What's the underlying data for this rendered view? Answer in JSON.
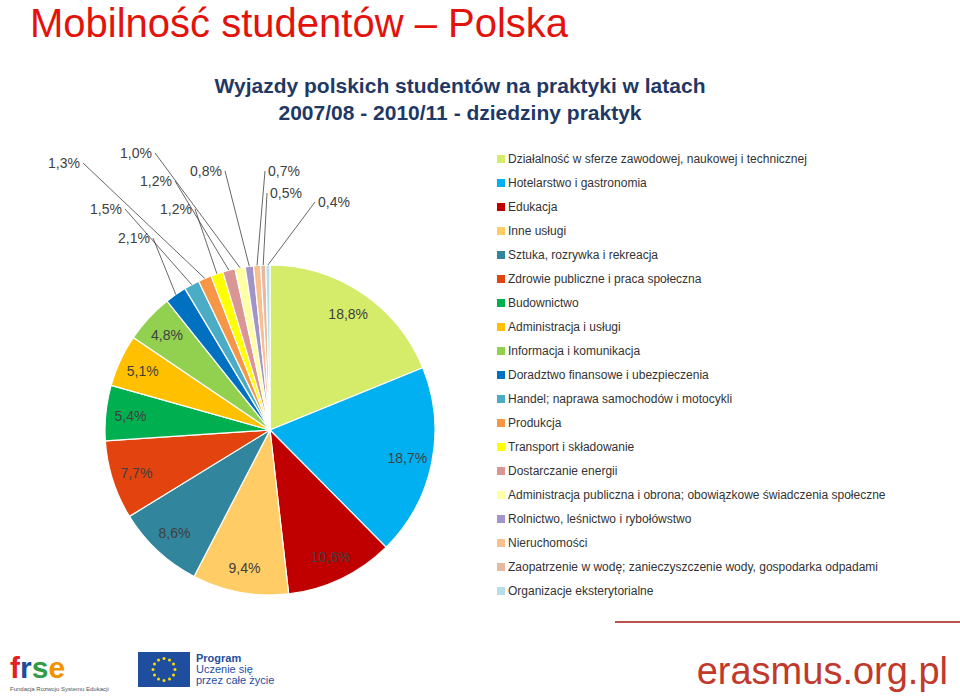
{
  "chart_data": {
    "type": "pie",
    "title": "Mobilność studentów – Polska",
    "subtitle": [
      "Wyjazdy polskich studentów na praktyki w latach",
      "2007/08 - 2010/11 - dziedziny praktyk"
    ],
    "categories": [
      "Działalność w sferze zawodowej, naukowej i technicznej",
      "Hotelarstwo i gastronomia",
      "Edukacja",
      "Inne usługi",
      "Sztuka, rozrywka i rekreacja",
      "Zdrowie publiczne i praca społeczna",
      "Budownictwo",
      "Administracja i usługi",
      "Informacja i komunikacja",
      "Doradztwo finansowe i ubezpieczenia",
      "Handel; naprawa samochodów i motocykli",
      "Produkcja",
      "Transport i składowanie",
      "Dostarczanie energii",
      "Administracja publiczna i obrona; obowiązkowe świadczenia społeczne",
      "Rolnictwo, leśnictwo i rybołówstwo",
      "Nieruchomości",
      "Zaopatrzenie w wodę; zanieczyszczenie wody, gospodarka odpadami",
      "Organizacje eksterytorialne"
    ],
    "values": [
      18.8,
      18.7,
      10.6,
      9.4,
      8.6,
      7.7,
      5.4,
      5.1,
      4.8,
      2.1,
      1.5,
      1.3,
      1.2,
      1.2,
      1.0,
      0.8,
      0.7,
      0.5,
      0.4
    ],
    "value_labels": [
      "18,8%",
      "18,7%",
      "10,6%",
      "9,4%",
      "8,6%",
      "7,7%",
      "5,4%",
      "5,1%",
      "4,8%",
      "2,1%",
      "1,5%",
      "1,3%",
      "1,2%",
      "1,2%",
      "1,0%",
      "0,8%",
      "0,7%",
      "0,5%",
      "0,4%"
    ],
    "colors": [
      "#d4ec6a",
      "#00b0f0",
      "#c00000",
      "#ffcc66",
      "#31859c",
      "#e2430f",
      "#00b050",
      "#ffc000",
      "#92d050",
      "#0070c0",
      "#4bacc6",
      "#f79646",
      "#ffff00",
      "#d99694",
      "#ffffa6",
      "#a094c8",
      "#fabf8f",
      "#e6b9a0",
      "#b7dee8"
    ],
    "data_labels": true,
    "legend": "right"
  },
  "footer": {
    "frse": "frse",
    "frse_name": "Fundacja Rozwoju Systemu Edukacji",
    "program": [
      "Program",
      "Uczenie się",
      "przez całe życie"
    ],
    "site": "erasmus.org.pl"
  }
}
